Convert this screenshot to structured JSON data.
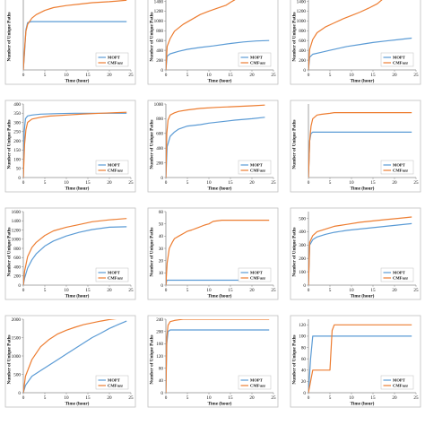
{
  "colors": {
    "mopt": "#5b9bd5",
    "cmfuzz": "#ed7d31",
    "axis": "#8c8c8c",
    "border": "#bfbfbf"
  },
  "chart_data": [
    {
      "type": "line",
      "caption": "(a) strings",
      "xlabel": "Time (hour)",
      "ylabel": "Number of Unique Paths",
      "xlim": [
        0,
        25
      ],
      "ylim": [
        0,
        2100
      ],
      "xticks": [
        0,
        5,
        10,
        15,
        20,
        25
      ],
      "yticks": [],
      "legend": "bottom-right",
      "series": [
        {
          "name": "MOPT",
          "color": "#5b9bd5",
          "x": [
            0,
            0.3,
            0.6,
            1,
            1.5,
            2,
            5,
            10,
            15,
            20,
            24
          ],
          "y": [
            0,
            500,
            1150,
            1350,
            1370,
            1380,
            1380,
            1380,
            1380,
            1380,
            1380
          ]
        },
        {
          "name": "CMFuzz",
          "color": "#ed7d31",
          "x": [
            0,
            0.3,
            0.6,
            1,
            2,
            3,
            5,
            7,
            10,
            13,
            16,
            20,
            24
          ],
          "y": [
            0,
            600,
            1100,
            1300,
            1480,
            1580,
            1700,
            1780,
            1840,
            1880,
            1920,
            1950,
            1990
          ]
        }
      ]
    },
    {
      "type": "line",
      "caption": "(b) size",
      "xlabel": "Time (hour)",
      "ylabel": "Number of Unique Paths",
      "xlim": [
        0,
        25
      ],
      "ylim": [
        0,
        1500
      ],
      "xticks": [
        0,
        5,
        10,
        15,
        20,
        25
      ],
      "yticks": [
        0,
        200,
        400,
        600,
        800,
        1000,
        1200,
        1400
      ],
      "legend": "bottom-right",
      "series": [
        {
          "name": "MOPT",
          "color": "#5b9bd5",
          "x": [
            0,
            0.3,
            1,
            3,
            5,
            8,
            11,
            15,
            18,
            21,
            24
          ],
          "y": [
            0,
            280,
            330,
            380,
            420,
            460,
            490,
            540,
            570,
            590,
            600
          ]
        },
        {
          "name": "CMFuzz",
          "color": "#ed7d31",
          "x": [
            0,
            0.3,
            1,
            2,
            4,
            6,
            8,
            10,
            12,
            14,
            15,
            16,
            17,
            24
          ],
          "y": [
            0,
            480,
            640,
            790,
            930,
            1030,
            1130,
            1200,
            1260,
            1320,
            1380,
            1430,
            1500,
            1500
          ]
        }
      ]
    },
    {
      "type": "line",
      "caption": "(c) nm",
      "xlabel": "Time (hour)",
      "ylabel": "Number of Unique Paths",
      "xlim": [
        0,
        25
      ],
      "ylim": [
        0,
        1500
      ],
      "xticks": [
        0,
        5,
        10,
        15,
        20,
        25
      ],
      "yticks": [
        0,
        200,
        400,
        600,
        800,
        1000,
        1200,
        1400
      ],
      "legend": "bottom-right",
      "series": [
        {
          "name": "MOPT",
          "color": "#5b9bd5",
          "x": [
            0,
            0.3,
            1,
            3,
            5,
            7,
            9,
            12,
            15,
            18,
            21,
            24
          ],
          "y": [
            0,
            260,
            320,
            360,
            400,
            440,
            480,
            520,
            560,
            590,
            620,
            650
          ]
        },
        {
          "name": "CMFuzz",
          "color": "#ed7d31",
          "x": [
            0,
            0.3,
            1,
            2,
            4,
            6,
            8,
            10,
            12,
            14,
            16,
            18,
            24
          ],
          "y": [
            0,
            420,
            620,
            760,
            880,
            960,
            1040,
            1110,
            1180,
            1260,
            1350,
            1500,
            1500
          ]
        }
      ]
    },
    {
      "type": "line",
      "caption": "(d) jhead",
      "xlabel": "Time (hour)",
      "ylabel": "Number of Unique Paths",
      "xlim": [
        0,
        25
      ],
      "ylim": [
        0,
        400
      ],
      "xticks": [
        0,
        5,
        10,
        15,
        20,
        25
      ],
      "yticks": [
        0,
        50,
        100,
        150,
        200,
        250,
        300,
        350,
        400
      ],
      "legend": "bottom-right",
      "series": [
        {
          "name": "MOPT",
          "color": "#5b9bd5",
          "x": [
            0,
            0.2,
            0.5,
            1,
            2,
            4,
            8,
            12,
            16,
            20,
            24
          ],
          "y": [
            0,
            250,
            320,
            335,
            340,
            345,
            348,
            350,
            350,
            350,
            350
          ]
        },
        {
          "name": "CMFuzz",
          "color": "#ed7d31",
          "x": [
            0,
            0.3,
            0.6,
            1,
            2,
            4,
            6,
            10,
            14,
            18,
            24
          ],
          "y": [
            0,
            180,
            260,
            300,
            318,
            328,
            334,
            340,
            346,
            350,
            355
          ]
        }
      ]
    },
    {
      "type": "line",
      "caption": "(e) sam2p",
      "xlabel": "Time (hour)",
      "ylabel": "Number of Unique Paths",
      "xlim": [
        0,
        25
      ],
      "ylim": [
        0,
        1000
      ],
      "xticks": [
        0,
        5,
        10,
        15,
        20,
        25
      ],
      "yticks": [
        0,
        200,
        400,
        600,
        800,
        1000
      ],
      "legend": "bottom-right",
      "series": [
        {
          "name": "MOPT",
          "color": "#5b9bd5",
          "x": [
            0,
            0.3,
            1,
            2,
            3,
            5,
            8,
            10,
            13,
            16,
            20,
            23
          ],
          "y": [
            0,
            420,
            560,
            620,
            660,
            700,
            720,
            740,
            760,
            780,
            800,
            820
          ]
        },
        {
          "name": "CMFuzz",
          "color": "#ed7d31",
          "x": [
            0,
            0.2,
            0.5,
            1,
            2,
            3,
            5,
            8,
            12,
            16,
            20,
            23
          ],
          "y": [
            0,
            600,
            780,
            850,
            880,
            900,
            920,
            940,
            955,
            965,
            975,
            985
          ]
        }
      ]
    },
    {
      "type": "line",
      "caption": "(f) infotocap",
      "xlabel": "Time (hour)",
      "ylabel": "Number of Unique Paths",
      "xlim": [
        0,
        25
      ],
      "ylim": [
        0,
        300
      ],
      "xticks": [
        0,
        5,
        10,
        15,
        20,
        25
      ],
      "yticks": [],
      "legend": "bottom-right",
      "series": [
        {
          "name": "MOPT",
          "color": "#5b9bd5",
          "x": [
            0,
            0.3,
            0.6,
            1,
            24
          ],
          "y": [
            0,
            150,
            180,
            185,
            185
          ]
        },
        {
          "name": "CMFuzz",
          "color": "#ed7d31",
          "x": [
            0,
            0.3,
            0.6,
            1,
            2,
            3,
            5,
            6,
            24
          ],
          "y": [
            0,
            150,
            210,
            240,
            255,
            258,
            262,
            265,
            265
          ]
        }
      ]
    },
    {
      "type": "line",
      "caption": "(g) gif2png",
      "xlabel": "Time (hour)",
      "ylabel": "Number of Unique Paths",
      "xlim": [
        0,
        25
      ],
      "ylim": [
        0,
        1600
      ],
      "xticks": [
        0,
        5,
        10,
        15,
        20,
        25
      ],
      "yticks": [
        0,
        200,
        400,
        600,
        800,
        1000,
        1200,
        1400,
        1600
      ],
      "legend": "bottom-right",
      "series": [
        {
          "name": "MOPT",
          "color": "#5b9bd5",
          "x": [
            0,
            0.3,
            1,
            2,
            3,
            5,
            7,
            10,
            13,
            16,
            20,
            24
          ],
          "y": [
            0,
            150,
            370,
            550,
            680,
            850,
            960,
            1070,
            1150,
            1210,
            1260,
            1270
          ]
        },
        {
          "name": "CMFuzz",
          "color": "#ed7d31",
          "x": [
            0,
            0.3,
            1,
            2,
            3,
            5,
            7,
            10,
            13,
            16,
            20,
            24
          ],
          "y": [
            0,
            300,
            620,
            820,
            930,
            1080,
            1180,
            1260,
            1320,
            1380,
            1420,
            1450
          ]
        }
      ]
    },
    {
      "type": "line",
      "caption": "(h) exiv2",
      "xlabel": "Time (hour)",
      "ylabel": "Number of Unique Paths",
      "xlim": [
        0,
        25
      ],
      "ylim": [
        0,
        60
      ],
      "xticks": [
        0,
        5,
        10,
        15,
        20,
        25
      ],
      "yticks": [
        0,
        10,
        20,
        30,
        40,
        50,
        60
      ],
      "legend": "bottom-right",
      "series": [
        {
          "name": "MOPT",
          "color": "#5b9bd5",
          "x": [
            0,
            0.2,
            24
          ],
          "y": [
            0,
            4,
            4
          ]
        },
        {
          "name": "CMFuzz",
          "color": "#ed7d31",
          "x": [
            0,
            0.3,
            0.8,
            1.5,
            2,
            3,
            4,
            5,
            6,
            7.5,
            9,
            10,
            11,
            13,
            24
          ],
          "y": [
            0,
            18,
            30,
            35,
            38,
            40,
            42,
            44,
            45,
            47,
            49,
            50,
            52,
            53,
            53
          ]
        }
      ]
    },
    {
      "type": "line",
      "caption": "(i) pngfix",
      "xlabel": "Time (hour)",
      "ylabel": "Number of Unique Paths",
      "xlim": [
        0,
        25
      ],
      "ylim": [
        0,
        550
      ],
      "xticks": [
        0,
        5,
        10,
        15,
        20,
        25
      ],
      "yticks": [
        0,
        100,
        200,
        300,
        400,
        500
      ],
      "legend": "bottom-right",
      "series": [
        {
          "name": "MOPT",
          "color": "#5b9bd5",
          "x": [
            0,
            0.3,
            1,
            2,
            4,
            6,
            9,
            12,
            15,
            18,
            21,
            24
          ],
          "y": [
            0,
            300,
            340,
            360,
            380,
            395,
            410,
            420,
            430,
            440,
            450,
            460
          ]
        },
        {
          "name": "CMFuzz",
          "color": "#ed7d31",
          "x": [
            0,
            0.3,
            1,
            2,
            4,
            6,
            9,
            12,
            15,
            18,
            21,
            24
          ],
          "y": [
            0,
            320,
            370,
            400,
            420,
            440,
            455,
            470,
            480,
            490,
            500,
            510
          ]
        }
      ]
    },
    {
      "type": "line",
      "caption": "",
      "xlabel": "Time (hour)",
      "ylabel": "Number of Unique Paths",
      "xlim": [
        0,
        25
      ],
      "ylim": [
        0,
        2000
      ],
      "xticks": [
        0,
        5,
        10,
        15,
        20,
        25
      ],
      "yticks": [
        0,
        500,
        1000,
        1500,
        2000
      ],
      "legend": "bottom-right",
      "series": [
        {
          "name": "MOPT",
          "color": "#5b9bd5",
          "x": [
            0,
            0.5,
            2,
            4,
            6,
            8,
            10,
            12,
            14,
            16,
            18,
            20,
            22,
            24
          ],
          "y": [
            0,
            200,
            450,
            600,
            750,
            900,
            1050,
            1200,
            1350,
            1500,
            1620,
            1750,
            1850,
            1950
          ]
        },
        {
          "name": "CMFuzz",
          "color": "#ed7d31",
          "x": [
            0,
            0.5,
            2,
            4,
            6,
            8,
            10,
            12,
            14,
            16,
            18,
            20,
            22,
            24
          ],
          "y": [
            0,
            450,
            900,
            1250,
            1450,
            1600,
            1700,
            1780,
            1850,
            1900,
            1950,
            1990,
            2020,
            2050
          ]
        }
      ]
    },
    {
      "type": "line",
      "caption": "",
      "xlabel": "Time (hour)",
      "ylabel": "Number of Unique Paths",
      "xlim": [
        0,
        25
      ],
      "ylim": [
        0,
        240
      ],
      "xticks": [
        0,
        5,
        10,
        15,
        20,
        25
      ],
      "yticks": [
        0,
        40,
        80,
        120,
        160,
        200,
        240
      ],
      "legend": "bottom-right",
      "series": [
        {
          "name": "MOPT",
          "color": "#5b9bd5",
          "x": [
            0,
            0.2,
            0.5,
            1,
            24
          ],
          "y": [
            0,
            160,
            200,
            205,
            205
          ]
        },
        {
          "name": "CMFuzz",
          "color": "#ed7d31",
          "x": [
            0,
            0.2,
            0.5,
            1,
            2,
            3,
            4,
            24
          ],
          "y": [
            0,
            180,
            220,
            232,
            236,
            238,
            240,
            240
          ]
        }
      ]
    },
    {
      "type": "line",
      "caption": "",
      "xlabel": "Time (hour)",
      "ylabel": "Number of Unique Paths",
      "xlim": [
        0,
        25
      ],
      "ylim": [
        0,
        130
      ],
      "xticks": [
        0,
        5,
        10,
        15,
        20,
        25
      ],
      "yticks": [
        0,
        20,
        40,
        60,
        80,
        100,
        120
      ],
      "legend": "bottom-right",
      "series": [
        {
          "name": "MOPT",
          "color": "#5b9bd5",
          "x": [
            0,
            0.5,
            1,
            2,
            24
          ],
          "y": [
            0,
            60,
            100,
            100,
            100
          ]
        },
        {
          "name": "CMFuzz",
          "color": "#ed7d31",
          "x": [
            0,
            0.5,
            1,
            3,
            5,
            5.5,
            6,
            24
          ],
          "y": [
            0,
            20,
            40,
            40,
            40,
            110,
            120,
            120
          ]
        }
      ]
    }
  ]
}
